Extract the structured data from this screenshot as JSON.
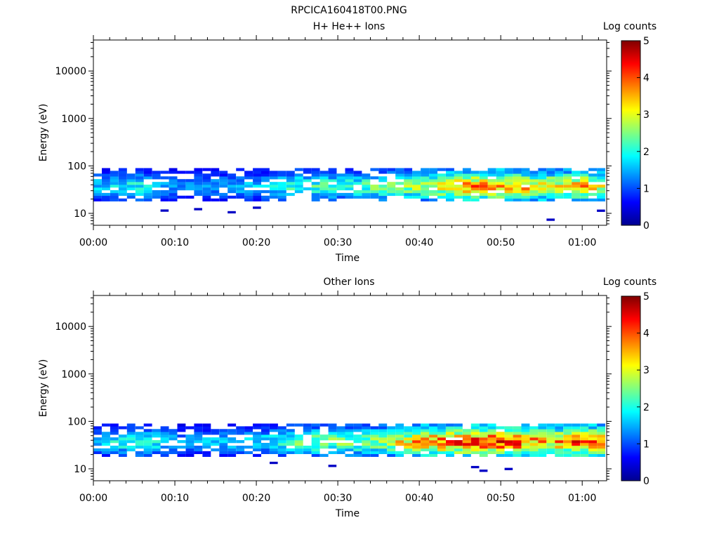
{
  "figure_title": "RPCICA160418T00.PNG",
  "colormap_stops": [
    "#00008f",
    "#0000ff",
    "#0080ff",
    "#00ffff",
    "#80ff80",
    "#ffff00",
    "#ff8000",
    "#ff0000",
    "#800000"
  ],
  "chart_data": [
    {
      "type": "heatmap",
      "title": "H+ He++ Ions",
      "xlabel": "Time",
      "ylabel": "Energy (eV)",
      "yscale": "log",
      "xlim": [
        "00:00",
        "01:03"
      ],
      "ylim": [
        5.6,
        45000
      ],
      "x_ticks": [
        "00:00",
        "00:10",
        "00:20",
        "00:30",
        "00:40",
        "00:50",
        "01:00"
      ],
      "y_ticks": [
        "10",
        "100",
        "1000",
        "10000"
      ],
      "colorbar": {
        "label": "Log counts",
        "range": [
          0,
          5
        ],
        "ticks": [
          "0",
          "1",
          "2",
          "3",
          "4",
          "5"
        ]
      },
      "energy_band_eV": [
        18,
        90
      ],
      "time_profile_log_counts": [
        {
          "time": "00:00",
          "peak": 1.6
        },
        {
          "time": "00:05",
          "peak": 2.0
        },
        {
          "time": "00:10",
          "peak": 1.3
        },
        {
          "time": "00:15",
          "peak": 1.4
        },
        {
          "time": "00:20",
          "peak": 1.6
        },
        {
          "time": "00:25",
          "peak": 2.2
        },
        {
          "time": "00:30",
          "peak": 2.1
        },
        {
          "time": "00:35",
          "peak": 2.3
        },
        {
          "time": "00:40",
          "peak": 2.7
        },
        {
          "time": "00:45",
          "peak": 3.4
        },
        {
          "time": "00:48",
          "peak": 3.7
        },
        {
          "time": "00:52",
          "peak": 3.3
        },
        {
          "time": "00:55",
          "peak": 3.0
        },
        {
          "time": "01:00",
          "peak": 3.4
        },
        {
          "time": "01:02",
          "peak": 3.0
        }
      ]
    },
    {
      "type": "heatmap",
      "title": "Other Ions",
      "xlabel": "Time",
      "ylabel": "Energy (eV)",
      "yscale": "log",
      "xlim": [
        "00:00",
        "01:03"
      ],
      "ylim": [
        5.6,
        45000
      ],
      "x_ticks": [
        "00:00",
        "00:10",
        "00:20",
        "00:30",
        "00:40",
        "00:50",
        "01:00"
      ],
      "y_ticks": [
        "10",
        "100",
        "1000",
        "10000"
      ],
      "colorbar": {
        "label": "Log counts",
        "range": [
          0,
          5
        ],
        "ticks": [
          "0",
          "1",
          "2",
          "3",
          "4",
          "5"
        ]
      },
      "energy_band_eV": [
        18,
        90
      ],
      "time_profile_log_counts": [
        {
          "time": "00:00",
          "peak": 1.7
        },
        {
          "time": "00:05",
          "peak": 2.2
        },
        {
          "time": "00:10",
          "peak": 1.4
        },
        {
          "time": "00:15",
          "peak": 1.5
        },
        {
          "time": "00:20",
          "peak": 1.7
        },
        {
          "time": "00:25",
          "peak": 2.5
        },
        {
          "time": "00:30",
          "peak": 2.4
        },
        {
          "time": "00:35",
          "peak": 2.6
        },
        {
          "time": "00:40",
          "peak": 3.5
        },
        {
          "time": "00:45",
          "peak": 3.9
        },
        {
          "time": "00:48",
          "peak": 4.1
        },
        {
          "time": "00:52",
          "peak": 3.8
        },
        {
          "time": "00:55",
          "peak": 3.3
        },
        {
          "time": "01:00",
          "peak": 3.9
        },
        {
          "time": "01:02",
          "peak": 3.5
        }
      ]
    }
  ]
}
